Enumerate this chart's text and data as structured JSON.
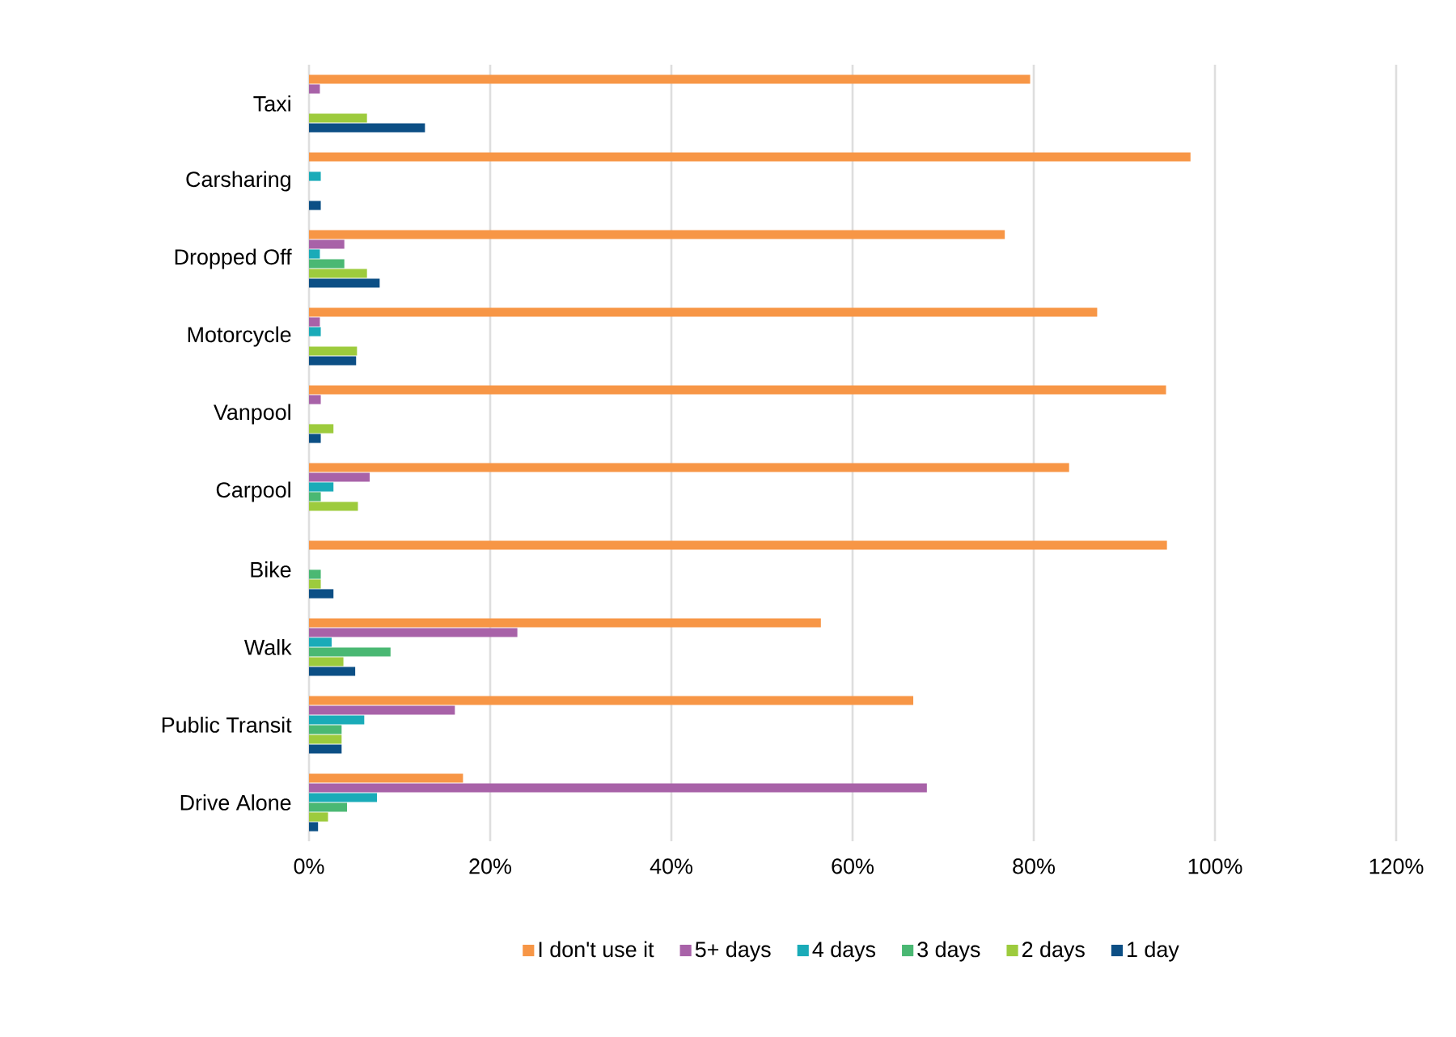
{
  "chart_data": {
    "type": "bar",
    "orientation": "horizontal",
    "categories": [
      "Taxi",
      "Carsharing",
      "Dropped Off",
      "Motorcycle",
      "Vanpool",
      "Carpool",
      "Bike",
      "Walk",
      "Public Transit",
      "Drive Alone"
    ],
    "series": [
      {
        "name": "I don't use it",
        "color": "#f79646",
        "values": [
          79.6,
          97.3,
          76.8,
          87.0,
          94.6,
          83.9,
          94.7,
          56.5,
          66.7,
          17.0
        ]
      },
      {
        "name": "5+ days",
        "color": "#a862a8",
        "values": [
          1.2,
          0,
          3.9,
          1.2,
          1.3,
          6.7,
          0,
          23.0,
          16.1,
          68.2
        ]
      },
      {
        "name": "4 days",
        "color": "#1aabb8",
        "values": [
          0,
          1.3,
          1.2,
          1.3,
          0,
          2.7,
          0,
          2.5,
          6.1,
          7.5
        ]
      },
      {
        "name": "3 days",
        "color": "#4ab873",
        "values": [
          0,
          0,
          3.9,
          0,
          0,
          1.3,
          1.3,
          9.0,
          3.6,
          4.2
        ]
      },
      {
        "name": "2 days",
        "color": "#9dcb3d",
        "values": [
          6.4,
          0,
          6.4,
          5.3,
          2.7,
          5.4,
          1.3,
          3.8,
          3.6,
          2.1
        ]
      },
      {
        "name": "1 day",
        "color": "#0c4f85",
        "values": [
          12.8,
          1.3,
          7.8,
          5.2,
          1.3,
          0,
          2.7,
          5.1,
          3.6,
          1.0
        ]
      }
    ],
    "xlim": [
      0,
      120
    ],
    "xticks": [
      {
        "value": 0,
        "label": "0%"
      },
      {
        "value": 20,
        "label": "20%"
      },
      {
        "value": 40,
        "label": "40%"
      },
      {
        "value": 60,
        "label": "60%"
      },
      {
        "value": 80,
        "label": "80%"
      },
      {
        "value": 100,
        "label": "100%"
      },
      {
        "value": 120,
        "label": "120%"
      }
    ],
    "grid": "x",
    "legend": "bottom"
  }
}
